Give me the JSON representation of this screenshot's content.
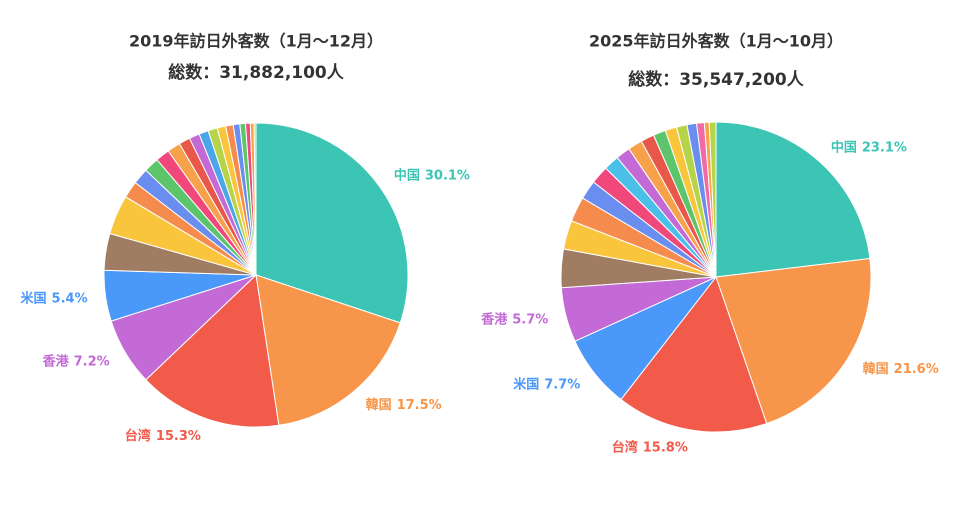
{
  "chart_data": [
    {
      "type": "pie",
      "title": "2019年訪日外客数（1月〜12月）",
      "subtitle": "総数：31,882,100人",
      "categories": [
        "中国",
        "韓国",
        "台湾",
        "香港",
        "米国",
        null,
        null,
        null,
        null,
        null,
        null,
        null,
        null,
        null,
        null,
        null,
        null,
        null,
        null,
        null,
        null,
        null,
        null
      ],
      "values": [
        30.1,
        17.5,
        15.3,
        7.2,
        5.4,
        3.9,
        4.2,
        1.8,
        1.7,
        1.6,
        1.5,
        1.4,
        1.2,
        1.1,
        1.0,
        1.0,
        0.9,
        0.8,
        0.7,
        0.6,
        0.5,
        0.4,
        0.2
      ],
      "value_labels": [
        "30.1%",
        "17.5%",
        "15.3%",
        "7.2%",
        "5.4%",
        null,
        null,
        null,
        null,
        null,
        null,
        null,
        null,
        null,
        null,
        null,
        null,
        null,
        null,
        null,
        null,
        null,
        null
      ],
      "colors": [
        "#3cc4b4",
        "#f7954a",
        "#f25a4a",
        "#c36ad6",
        "#4a98fa",
        "#a07c63",
        "#f9c53c",
        "#f58b4c",
        "#6a8ef0",
        "#5cc46a",
        "#f0487a",
        "#f7a24a",
        "#e8584a",
        "#c36ad6",
        "#4aa6e8",
        "#b6d44a",
        "#f9c53c",
        "#f58b4c",
        "#6a8ef0",
        "#5cc46a",
        "#f0487a",
        "#f7a24a",
        "#b6d44a"
      ]
    },
    {
      "type": "pie",
      "title": "2025年訪日外客数（1月〜10月）",
      "subtitle": "総数：35,547,200人",
      "categories": [
        "中国",
        "韓国",
        "台湾",
        "米国",
        "香港",
        null,
        null,
        null,
        null,
        null,
        null,
        null,
        null,
        null,
        null,
        null,
        null,
        null,
        null,
        null,
        null
      ],
      "values": [
        23.1,
        21.6,
        15.8,
        7.7,
        5.7,
        4.0,
        3.0,
        2.6,
        2.0,
        1.9,
        1.6,
        1.5,
        1.5,
        1.4,
        1.3,
        1.2,
        1.1,
        1.0,
        0.8,
        0.5,
        0.7
      ],
      "value_labels": [
        "23.1%",
        "21.6%",
        "15.8%",
        "7.7%",
        "5.7%",
        null,
        null,
        null,
        null,
        null,
        null,
        null,
        null,
        null,
        null,
        null,
        null,
        null,
        null,
        null,
        null
      ],
      "colors": [
        "#3cc4b4",
        "#f7954a",
        "#f25a4a",
        "#4a98fa",
        "#c36ad6",
        "#a07c63",
        "#f9c53c",
        "#f58b4c",
        "#6a8ef0",
        "#f0487a",
        "#4ac0e8",
        "#c36ad6",
        "#f7a24a",
        "#e8584a",
        "#5cc46a",
        "#f9c53c",
        "#b6d44a",
        "#6a8ef0",
        "#f06aa6",
        "#f7a24a",
        "#b6d44a"
      ]
    }
  ]
}
